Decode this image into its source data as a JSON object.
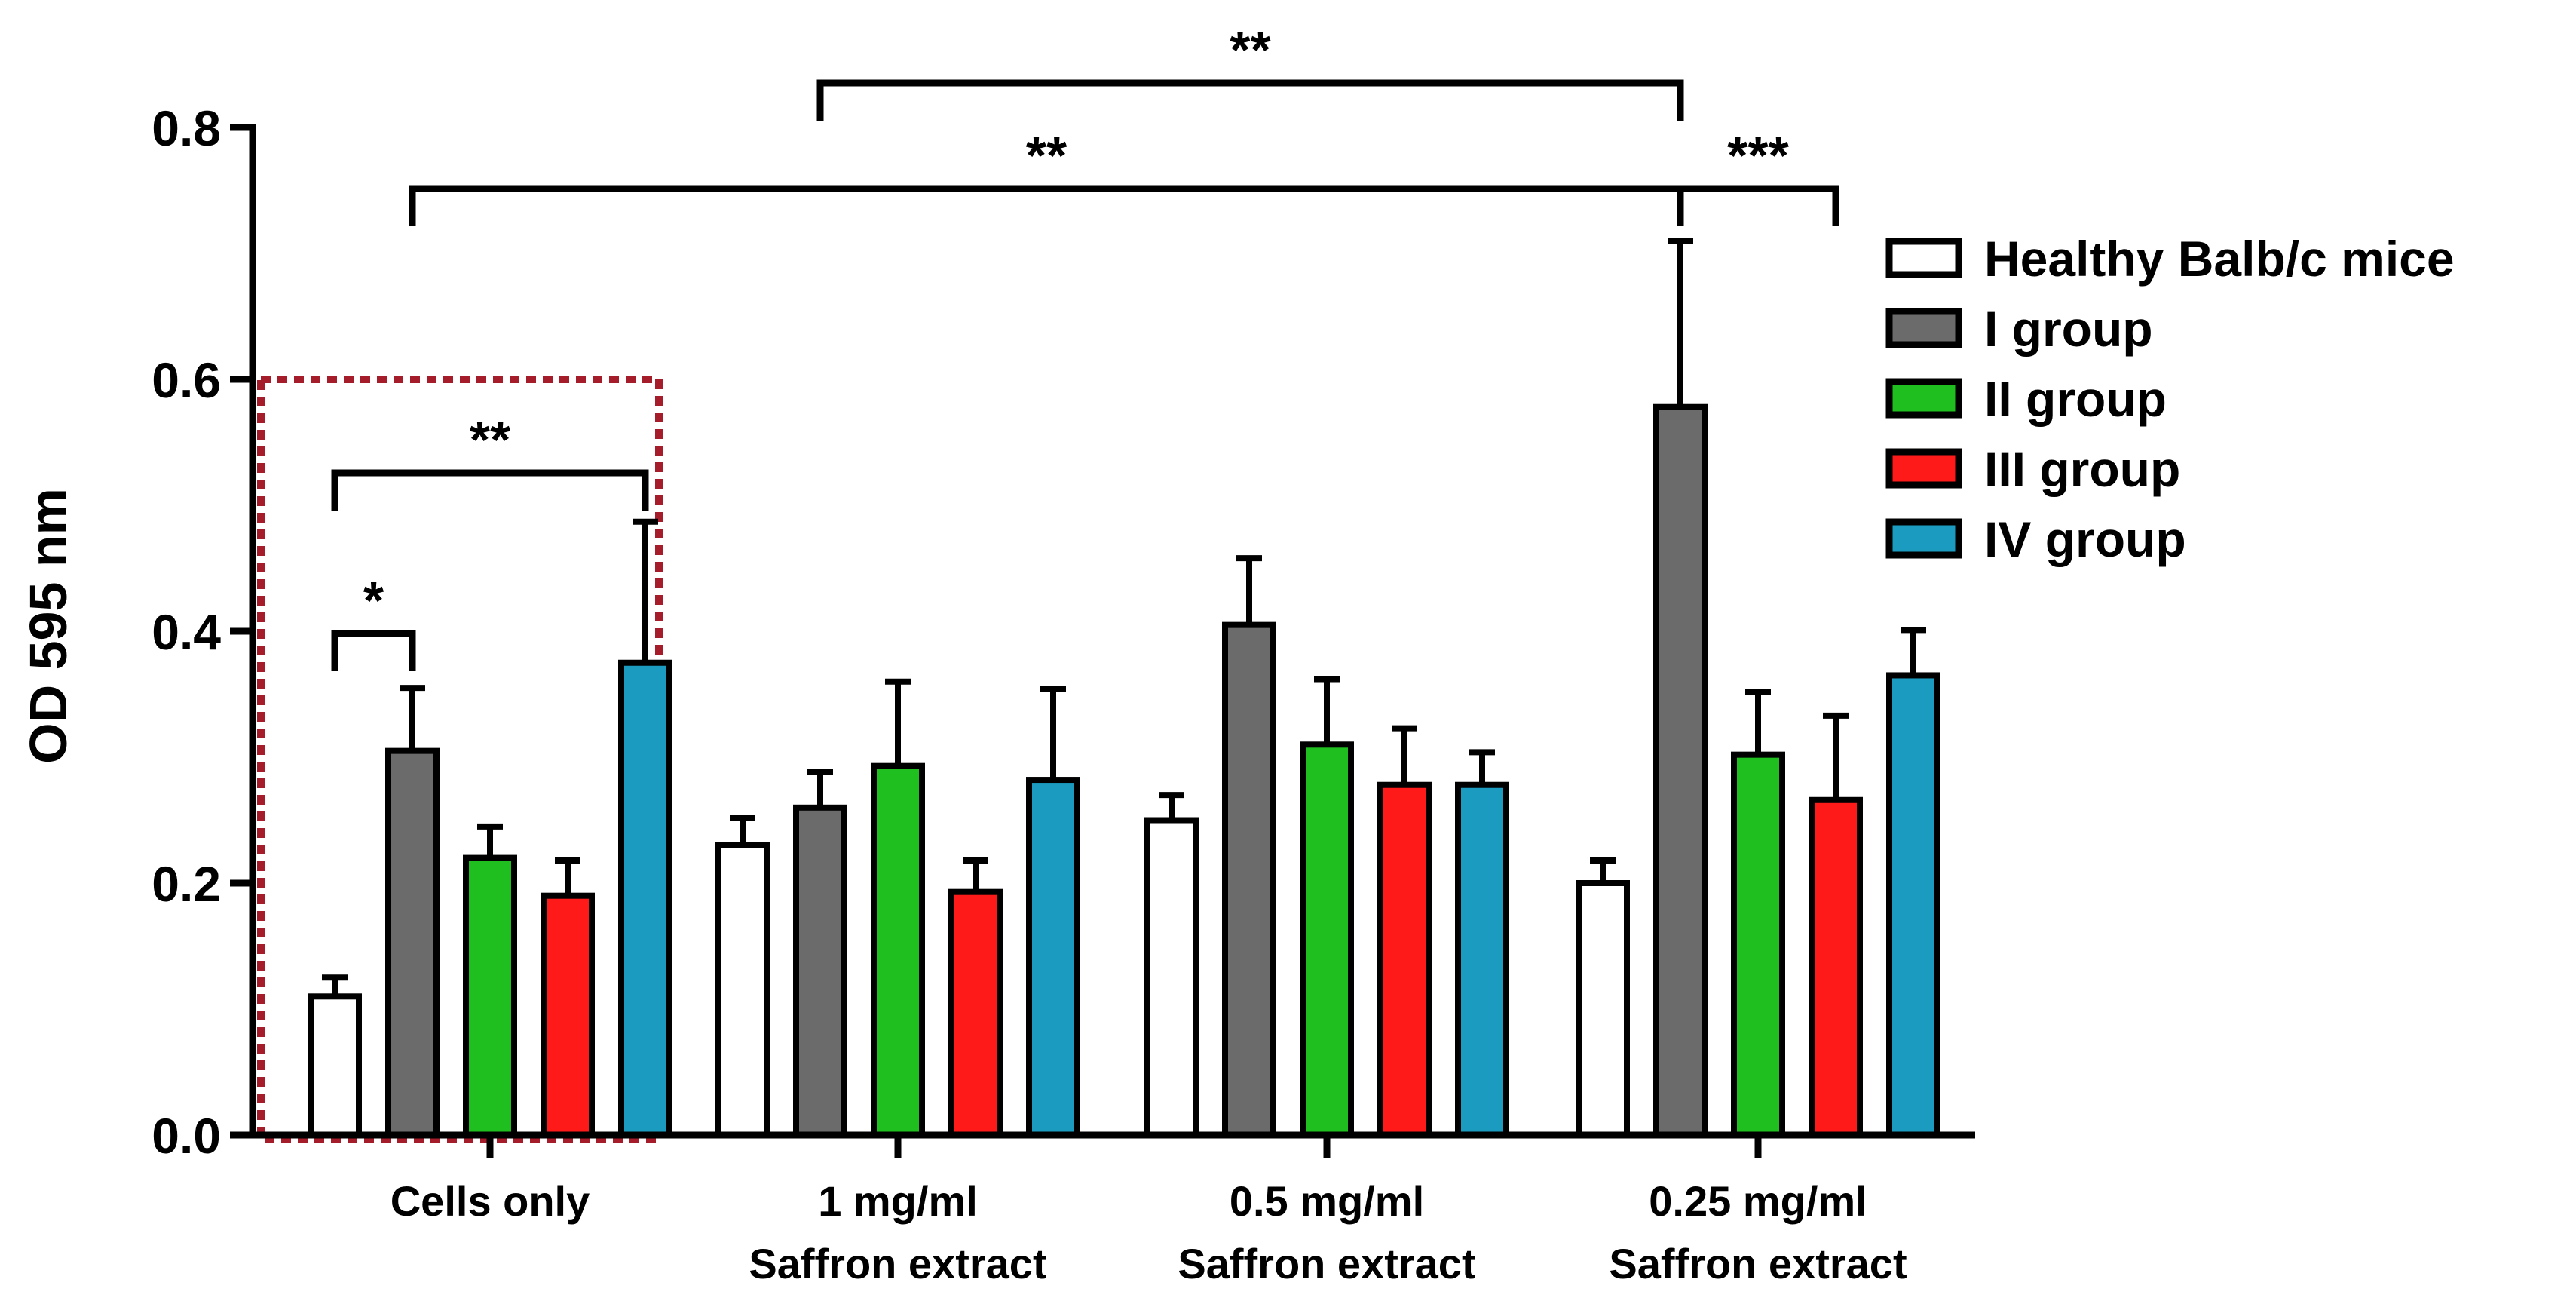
{
  "chart_data": {
    "type": "bar",
    "ylabel": "OD 595 nm",
    "ylim": [
      0,
      0.8
    ],
    "yticks": [
      "0.0",
      "0.2",
      "0.4",
      "0.6",
      "0.8"
    ],
    "categories": [
      [
        "Cells only"
      ],
      [
        "1 mg/ml",
        "Saffron extract"
      ],
      [
        "0.5 mg/ml",
        "Saffron extract"
      ],
      [
        "0.25 mg/ml",
        "Saffron extract"
      ]
    ],
    "series": [
      {
        "name": "Healthy Balb/c mice",
        "color": "#ffffff",
        "values": [
          0.11,
          0.23,
          0.25,
          0.2
        ],
        "errors": [
          0.015,
          0.022,
          0.02,
          0.018
        ]
      },
      {
        "name": "I group",
        "color": "#6b6b6b",
        "values": [
          0.305,
          0.26,
          0.405,
          0.578
        ],
        "errors": [
          0.05,
          0.028,
          0.053,
          0.132
        ]
      },
      {
        "name": "II group",
        "color": "#1fbf1f",
        "values": [
          0.22,
          0.293,
          0.31,
          0.302
        ],
        "errors": [
          0.025,
          0.067,
          0.052,
          0.05
        ]
      },
      {
        "name": "III group",
        "color": "#ff1a1a",
        "values": [
          0.19,
          0.193,
          0.278,
          0.266
        ],
        "errors": [
          0.028,
          0.025,
          0.045,
          0.067
        ]
      },
      {
        "name": "IV group",
        "color": "#1a9bbf",
        "values": [
          0.375,
          0.282,
          0.278,
          0.365
        ],
        "errors": [
          0.112,
          0.072,
          0.026,
          0.036
        ]
      }
    ],
    "legend_position": "right",
    "significance": [
      {
        "label": "*",
        "from": [
          0,
          0
        ],
        "to": [
          0,
          1
        ]
      },
      {
        "label": "**",
        "from": [
          0,
          0
        ],
        "to": [
          0,
          4
        ]
      },
      {
        "label": "**",
        "from": [
          0,
          1
        ],
        "to": [
          3,
          1
        ]
      },
      {
        "label": "**",
        "from": [
          1,
          1
        ],
        "to": [
          3,
          1
        ]
      },
      {
        "label": "***",
        "from": [
          3,
          1
        ],
        "to": [
          3,
          3
        ]
      }
    ],
    "highlight_box": {
      "category_index": 0,
      "y_top": 0.6,
      "color": "#a51c2a",
      "style": "dotted"
    }
  }
}
